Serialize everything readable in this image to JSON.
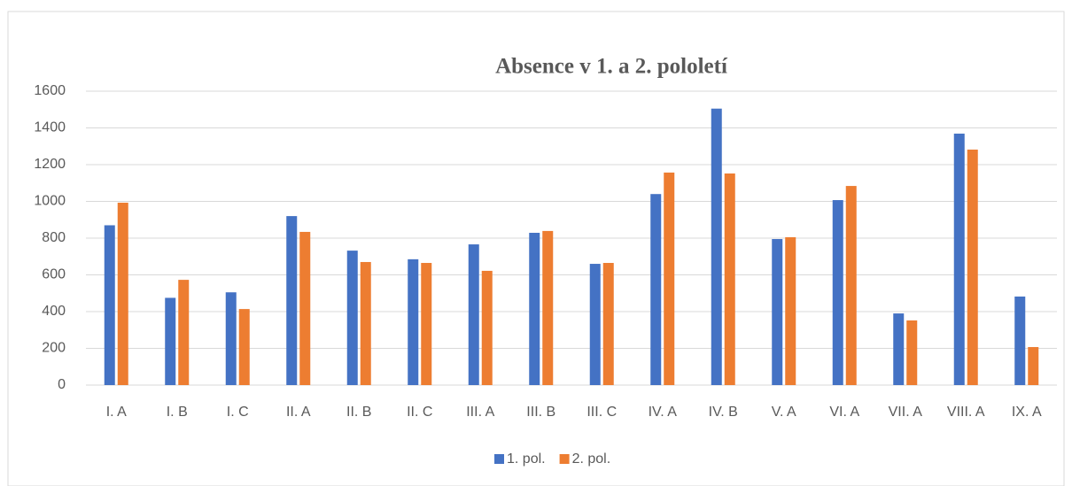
{
  "chart_data": {
    "type": "bar",
    "title": "Absence v 1. a 2. pololetí",
    "categories": [
      "I. A",
      "I. B",
      "I. C",
      "II. A",
      "II. B",
      "II. C",
      "III. A",
      "III. B",
      "III. C",
      "IV. A",
      "IV. B",
      "V. A",
      "VI. A",
      "VII. A",
      "VIII. A",
      "IX. A"
    ],
    "series": [
      {
        "name": "1. pol.",
        "color": "#4472c4",
        "values": [
          870,
          475,
          505,
          920,
          732,
          685,
          766,
          829,
          660,
          1040,
          1505,
          795,
          1007,
          390,
          1369,
          482
        ]
      },
      {
        "name": "2. pol.",
        "color": "#ed7d31",
        "values": [
          993,
          573,
          414,
          834,
          670,
          665,
          622,
          839,
          665,
          1157,
          1152,
          805,
          1084,
          352,
          1282,
          207
        ]
      }
    ],
    "ylim": [
      0,
      1600
    ],
    "yticks": [
      0,
      200,
      400,
      600,
      800,
      1000,
      1200,
      1400,
      1600
    ],
    "grid": true,
    "legend": "bottom"
  }
}
